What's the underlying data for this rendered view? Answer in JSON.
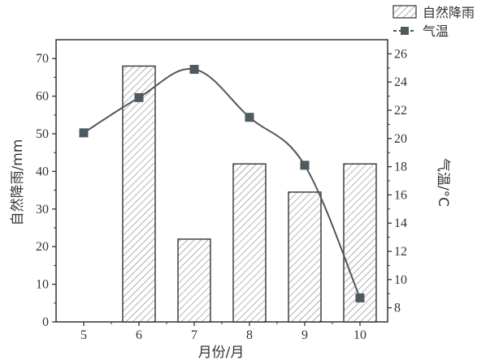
{
  "chart_data": {
    "type": "bar+line",
    "categories": [
      "5",
      "6",
      "7",
      "8",
      "9",
      "10"
    ],
    "x": [
      5,
      6,
      7,
      8,
      9,
      10
    ],
    "xlabel": "月份/月",
    "ylabel_left": "自然降雨/mm",
    "ylabel_right": "气温/°C",
    "ylim_left": [
      0,
      75
    ],
    "ylim_right": [
      7,
      27
    ],
    "yticks_left": [
      0,
      10,
      20,
      30,
      40,
      50,
      60,
      70
    ],
    "yticks_right": [
      8,
      10,
      12,
      14,
      16,
      18,
      20,
      22,
      24,
      26
    ],
    "series": [
      {
        "name": "自然降雨",
        "type": "bar",
        "axis": "left",
        "pattern": "diagonal-hatch",
        "values": [
          null,
          68,
          22,
          42,
          34.5,
          42
        ]
      },
      {
        "name": "气温",
        "type": "line",
        "axis": "right",
        "marker": "square",
        "smooth": true,
        "values": [
          20.4,
          22.9,
          24.9,
          21.5,
          18.1,
          8.7
        ]
      }
    ],
    "legend_position": "top-right",
    "grid": false,
    "colors": {
      "line": "#555555",
      "marker": "#4d5a60",
      "bar_edge": "#333333",
      "axis": "#333333"
    }
  }
}
